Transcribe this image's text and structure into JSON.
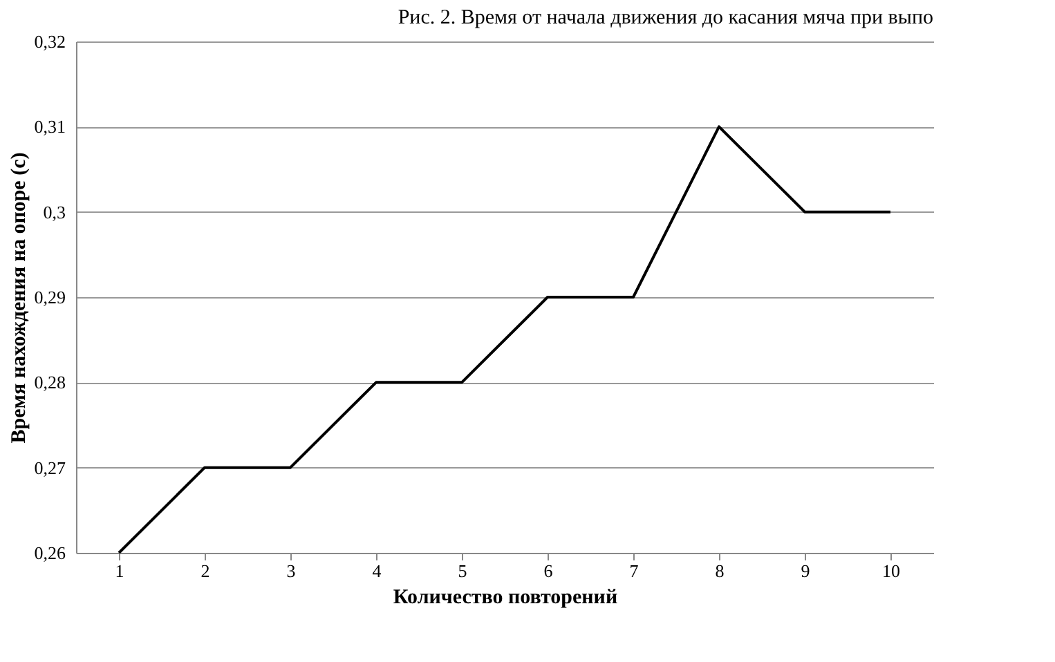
{
  "chart_data": {
    "type": "line",
    "title": "Рис. 2. Время от начала движения до касания мяча при выпо",
    "xlabel": "Количество повторений",
    "ylabel": "Время нахождения на опоре (с)",
    "categories": [
      "1",
      "2",
      "3",
      "4",
      "5",
      "6",
      "7",
      "8",
      "9",
      "10"
    ],
    "series": [
      {
        "color": "#000000",
        "values": [
          0.26,
          0.27,
          0.27,
          0.28,
          0.28,
          0.29,
          0.29,
          0.31,
          0.3,
          0.3
        ]
      }
    ],
    "ylim": [
      0.26,
      0.32
    ],
    "yticks": [
      {
        "value": 0.26,
        "label": "0,26"
      },
      {
        "value": 0.27,
        "label": "0,27"
      },
      {
        "value": 0.28,
        "label": "0,28"
      },
      {
        "value": 0.29,
        "label": "0,29"
      },
      {
        "value": 0.3,
        "label": "0,3"
      },
      {
        "value": 0.31,
        "label": "0,31"
      },
      {
        "value": 0.32,
        "label": "0,32"
      }
    ],
    "grid": "y",
    "legend": false,
    "marker": "none",
    "line_style": "solid"
  }
}
